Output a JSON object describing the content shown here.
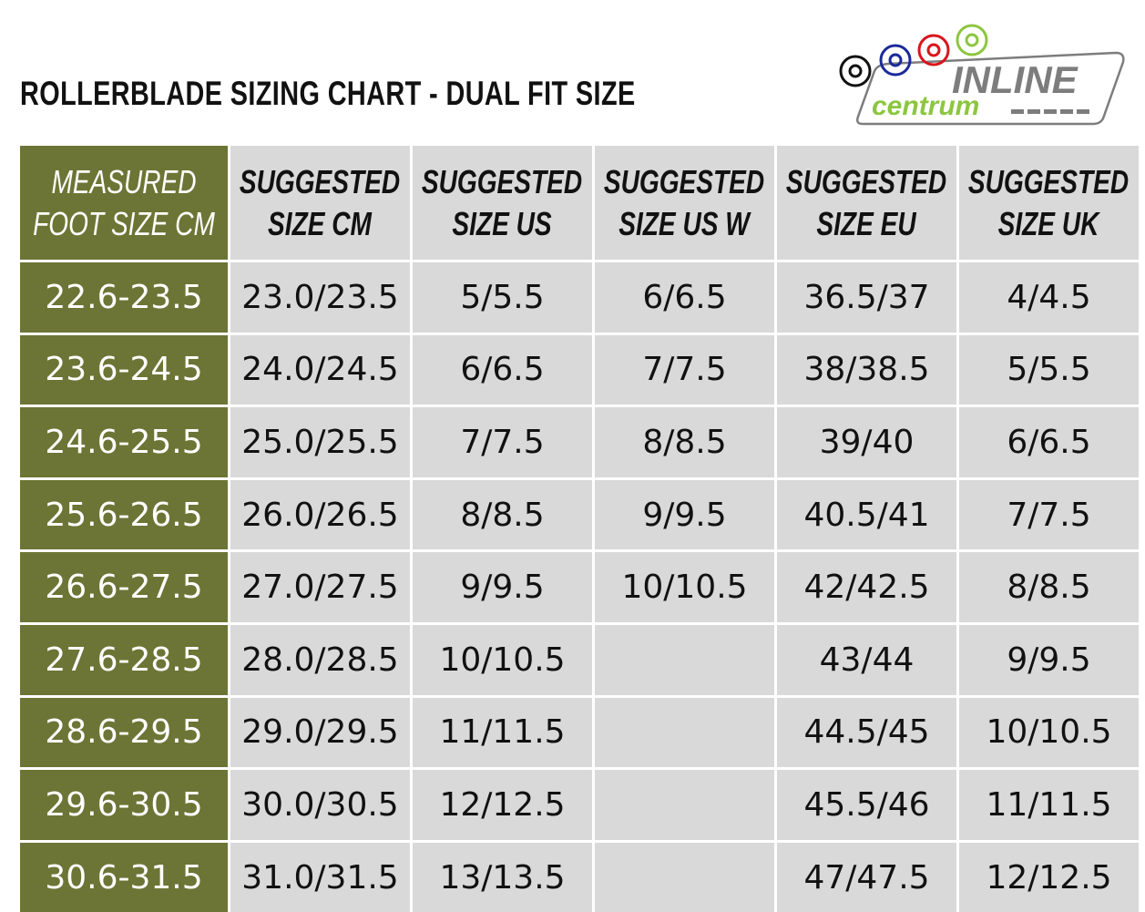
{
  "title": "ROLLERBLADE SIZING CHART - DUAL FIT SIZE",
  "logo": {
    "line1": "INLINE",
    "line2": "centrum",
    "colors": [
      "#111111",
      "#1a2a9a",
      "#d9141c",
      "#8cc63f"
    ],
    "gray": "#7d7d7d",
    "green": "#8cc63f"
  },
  "colors": {
    "first_column": "#6c7535",
    "cells": "#d9d9d9"
  },
  "headers": [
    {
      "line1": "MEASURED",
      "line2": "FOOT SIZE CM"
    },
    {
      "line1": "SUGGESTED",
      "line2": "SIZE CM"
    },
    {
      "line1": "SUGGESTED",
      "line2": "SIZE US"
    },
    {
      "line1": "SUGGESTED",
      "line2": "SIZE US W"
    },
    {
      "line1": "SUGGESTED",
      "line2": "SIZE EU"
    },
    {
      "line1": "SUGGESTED",
      "line2": "SIZE UK"
    }
  ],
  "rows": [
    [
      "22.6-23.5",
      "23.0/23.5",
      "5/5.5",
      "6/6.5",
      "36.5/37",
      "4/4.5"
    ],
    [
      "23.6-24.5",
      "24.0/24.5",
      "6/6.5",
      "7/7.5",
      "38/38.5",
      "5/5.5"
    ],
    [
      "24.6-25.5",
      "25.0/25.5",
      "7/7.5",
      "8/8.5",
      "39/40",
      "6/6.5"
    ],
    [
      "25.6-26.5",
      "26.0/26.5",
      "8/8.5",
      "9/9.5",
      "40.5/41",
      "7/7.5"
    ],
    [
      "26.6-27.5",
      "27.0/27.5",
      "9/9.5",
      "10/10.5",
      "42/42.5",
      "8/8.5"
    ],
    [
      "27.6-28.5",
      "28.0/28.5",
      "10/10.5",
      "",
      "43/44",
      "9/9.5"
    ],
    [
      "28.6-29.5",
      "29.0/29.5",
      "11/11.5",
      "",
      "44.5/45",
      "10/10.5"
    ],
    [
      "29.6-30.5",
      "30.0/30.5",
      "12/12.5",
      "",
      "45.5/46",
      "11/11.5"
    ],
    [
      "30.6-31.5",
      "31.0/31.5",
      "13/13.5",
      "",
      "47/47.5",
      "12/12.5"
    ]
  ]
}
